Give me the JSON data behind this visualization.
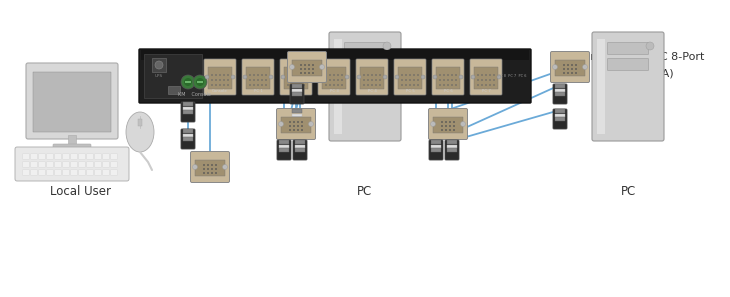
{
  "background_color": "#ffffff",
  "label_local_user": "Local User",
  "label_pc": "PC",
  "device_label_line1": "ServSwitch™ EC 8-Port",
  "device_label_line2": "(KV98008A)",
  "kvm_color": "#1e1e1e",
  "kvm_top_color": "#2d2d2d",
  "connector_color": "#c8b89a",
  "connector_face_color": "#b8a888",
  "cable_color": "#6baad8",
  "ps2_cable_color": "#333333",
  "text_color": "#333333",
  "ps2_connector_outer": "#3a3a3a",
  "ps2_connector_inner": "#aaaaaa",
  "pc_tower_color": "#d0d0d0",
  "pc_tower_edge": "#999999",
  "monitor_frame_color": "#cccccc",
  "monitor_screen_color": "#b8b8b8",
  "keyboard_color": "#e0e0e0",
  "mouse_color": "#d8d8d8"
}
